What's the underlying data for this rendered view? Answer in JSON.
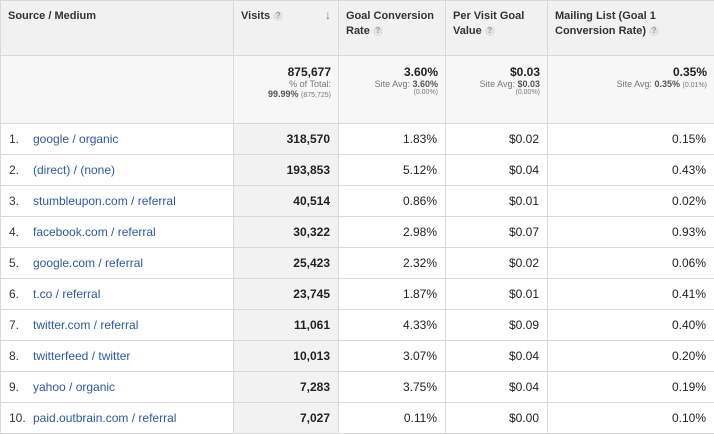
{
  "headers": {
    "source": "Source / Medium",
    "visits": "Visits",
    "goal_conv": "Goal Conversion Rate",
    "per_visit": "Per Visit Goal Value",
    "mailing": "Mailing List (Goal 1 Conversion Rate)",
    "help_glyph": "?",
    "sort_glyph": "↓"
  },
  "totals": {
    "visits": "875,677",
    "visits_label": "% of Total:",
    "visits_pct": "99.99%",
    "visits_total": "(875,725)",
    "goal_conv": "3.60%",
    "goal_conv_label": "Site Avg:",
    "goal_conv_avg": "3.60%",
    "goal_conv_diff": "(0.00%)",
    "per_visit": "$0.03",
    "per_visit_label": "Site Avg:",
    "per_visit_avg": "$0.03",
    "per_visit_diff": "(0.00%)",
    "mailing": "0.35%",
    "mailing_label": "Site Avg:",
    "mailing_avg": "0.35%",
    "mailing_diff": "(0.01%)"
  },
  "rows": [
    {
      "idx": "1.",
      "source": "google / organic",
      "visits": "318,570",
      "goal": "1.83%",
      "value": "$0.02",
      "mailing": "0.15%"
    },
    {
      "idx": "2.",
      "source": "(direct) / (none)",
      "visits": "193,853",
      "goal": "5.12%",
      "value": "$0.04",
      "mailing": "0.43%"
    },
    {
      "idx": "3.",
      "source": "stumbleupon.com / referral",
      "visits": "40,514",
      "goal": "0.86%",
      "value": "$0.01",
      "mailing": "0.02%"
    },
    {
      "idx": "4.",
      "source": "facebook.com / referral",
      "visits": "30,322",
      "goal": "2.98%",
      "value": "$0.07",
      "mailing": "0.93%"
    },
    {
      "idx": "5.",
      "source": "google.com / referral",
      "visits": "25,423",
      "goal": "2.32%",
      "value": "$0.02",
      "mailing": "0.06%"
    },
    {
      "idx": "6.",
      "source": "t.co / referral",
      "visits": "23,745",
      "goal": "1.87%",
      "value": "$0.01",
      "mailing": "0.41%"
    },
    {
      "idx": "7.",
      "source": "twitter.com / referral",
      "visits": "11,061",
      "goal": "4.33%",
      "value": "$0.09",
      "mailing": "0.40%"
    },
    {
      "idx": "8.",
      "source": "twitterfeed / twitter",
      "visits": "10,013",
      "goal": "3.07%",
      "value": "$0.04",
      "mailing": "0.20%"
    },
    {
      "idx": "9.",
      "source": "yahoo / organic",
      "visits": "7,283",
      "goal": "3.75%",
      "value": "$0.04",
      "mailing": "0.19%"
    },
    {
      "idx": "10.",
      "source": "paid.outbrain.com / referral",
      "visits": "7,027",
      "goal": "0.11%",
      "value": "$0.00",
      "mailing": "0.10%"
    }
  ]
}
